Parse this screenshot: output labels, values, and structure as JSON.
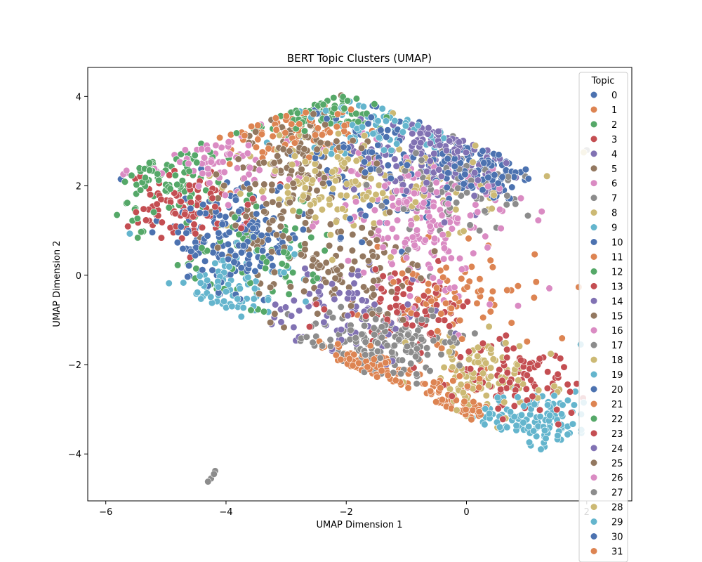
{
  "chart_data": {
    "type": "scatter",
    "title": "BERT Topic Clusters (UMAP)",
    "xlabel": "UMAP Dimension 1",
    "ylabel": "UMAP Dimension 2",
    "xlim": [
      -6.3,
      2.75
    ],
    "ylim": [
      -5.05,
      4.65
    ],
    "xticks": [
      -6,
      -4,
      -2,
      0,
      2
    ],
    "yticks": [
      -4,
      -2,
      0,
      2,
      4
    ],
    "grid": false,
    "legend": {
      "title": "Topic",
      "placement": "right",
      "entries": [
        "0",
        "1",
        "2",
        "3",
        "4",
        "5",
        "6",
        "7",
        "8",
        "9",
        "10",
        "11",
        "12",
        "13",
        "14",
        "15",
        "16",
        "17",
        "18",
        "19",
        "20",
        "21",
        "22",
        "23",
        "24",
        "25",
        "26",
        "27",
        "28",
        "29",
        "30",
        "31"
      ]
    },
    "palette": [
      "#4c72b0",
      "#dd8452",
      "#55a868",
      "#c44e52",
      "#8172b3",
      "#937860",
      "#da8bc3",
      "#8c8c8c",
      "#ccb974",
      "#64b5cd"
    ],
    "series": [
      {
        "name": "0",
        "center": [
          0.3,
          2.5
        ],
        "spread": [
          0.55,
          0.45
        ],
        "count": 120
      },
      {
        "name": "1",
        "center": [
          -3.0,
          3.3
        ],
        "spread": [
          0.6,
          0.35
        ],
        "count": 90
      },
      {
        "name": "2",
        "center": [
          -5.0,
          2.6
        ],
        "spread": [
          0.5,
          0.7
        ],
        "count": 90
      },
      {
        "name": "3",
        "center": [
          -4.6,
          1.5
        ],
        "spread": [
          0.5,
          0.4
        ],
        "count": 95
      },
      {
        "name": "4",
        "center": [
          -0.5,
          2.5
        ],
        "spread": [
          0.6,
          0.6
        ],
        "count": 95
      },
      {
        "name": "5",
        "center": [
          -1.8,
          0.1
        ],
        "spread": [
          0.7,
          0.6
        ],
        "count": 90
      },
      {
        "name": "6",
        "center": [
          -1.0,
          1.5
        ],
        "spread": [
          0.7,
          0.7
        ],
        "count": 100
      },
      {
        "name": "7",
        "center": [
          -1.6,
          -1.4
        ],
        "spread": [
          0.6,
          0.4
        ],
        "count": 100
      },
      {
        "name": "8",
        "center": [
          -2.4,
          2.1
        ],
        "spread": [
          0.6,
          0.5
        ],
        "count": 90
      },
      {
        "name": "9",
        "center": [
          1.1,
          -3.2
        ],
        "spread": [
          0.5,
          0.3
        ],
        "count": 120
      },
      {
        "name": "10",
        "center": [
          -3.7,
          0.6
        ],
        "spread": [
          0.5,
          0.5
        ],
        "count": 90
      },
      {
        "name": "11",
        "center": [
          -2.5,
          -2.2
        ],
        "spread": [
          0.6,
          0.25
        ],
        "count": 80
      },
      {
        "name": "12",
        "center": [
          -2.5,
          3.7
        ],
        "spread": [
          0.6,
          0.25
        ],
        "count": 80
      },
      {
        "name": "13",
        "center": [
          0.9,
          -2.3
        ],
        "spread": [
          0.55,
          0.4
        ],
        "count": 95
      },
      {
        "name": "14",
        "center": [
          -2.0,
          -0.8
        ],
        "spread": [
          0.7,
          0.6
        ],
        "count": 85
      },
      {
        "name": "15",
        "center": [
          -2.9,
          2.7
        ],
        "spread": [
          0.6,
          0.6
        ],
        "count": 85
      },
      {
        "name": "16",
        "center": [
          -0.4,
          0.9
        ],
        "spread": [
          0.7,
          0.9
        ],
        "count": 95
      },
      {
        "name": "17",
        "center": [
          -1.2,
          -1.6
        ],
        "spread": [
          0.6,
          0.4
        ],
        "count": 90
      },
      {
        "name": "18",
        "center": [
          0.2,
          -2.3
        ],
        "spread": [
          0.6,
          0.45
        ],
        "count": 110
      },
      {
        "name": "19",
        "center": [
          -3.9,
          -0.3
        ],
        "spread": [
          0.5,
          0.4
        ],
        "count": 80
      },
      {
        "name": "20",
        "center": [
          -1.6,
          2.7
        ],
        "spread": [
          0.6,
          0.7
        ],
        "count": 90
      },
      {
        "name": "21",
        "center": [
          -0.4,
          -3.0
        ],
        "spread": [
          0.4,
          0.3
        ],
        "count": 75
      },
      {
        "name": "22",
        "center": [
          -3.4,
          0.4
        ],
        "spread": [
          0.7,
          0.7
        ],
        "count": 75
      },
      {
        "name": "23",
        "center": [
          -1.0,
          -0.7
        ],
        "spread": [
          0.6,
          0.4
        ],
        "count": 80
      },
      {
        "name": "24",
        "center": [
          -0.2,
          3.1
        ],
        "spread": [
          0.5,
          0.35
        ],
        "count": 75
      },
      {
        "name": "25",
        "center": [
          -3.2,
          1.1
        ],
        "spread": [
          0.5,
          0.8
        ],
        "count": 85
      },
      {
        "name": "26",
        "center": [
          -4.2,
          2.7
        ],
        "spread": [
          0.7,
          0.5
        ],
        "count": 70
      },
      {
        "name": "27",
        "center": [
          -0.2,
          1.9
        ],
        "spread": [
          0.6,
          0.5
        ],
        "count": 85
      },
      {
        "name": "28",
        "center": [
          -1.1,
          2.0
        ],
        "spread": [
          0.8,
          0.6
        ],
        "count": 85
      },
      {
        "name": "29",
        "center": [
          -1.2,
          3.4
        ],
        "spread": [
          0.8,
          0.35
        ],
        "count": 70
      },
      {
        "name": "30",
        "center": [
          -4.1,
          1.0
        ],
        "spread": [
          0.5,
          0.5
        ],
        "count": 80
      },
      {
        "name": "31",
        "center": [
          -0.2,
          -0.6
        ],
        "spread": [
          0.7,
          0.6
        ],
        "count": 85
      }
    ]
  }
}
